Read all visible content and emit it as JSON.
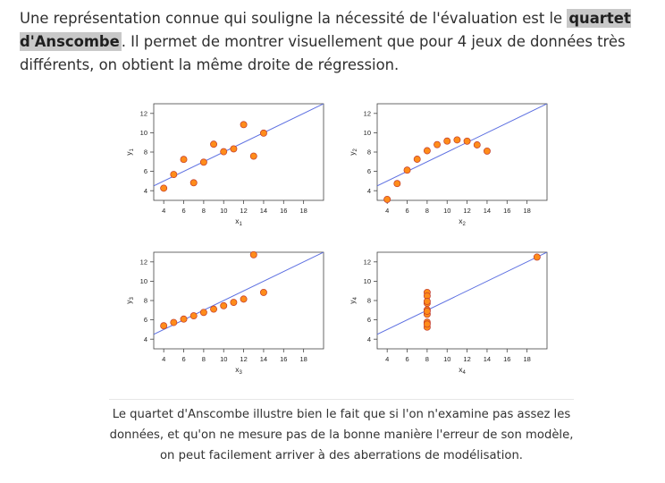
{
  "intro": {
    "text_before": "Une représentation connue qui souligne la nécessité de l'évaluation est le ",
    "highlight": "quartet d'Anscombe",
    "text_after": ". Il permet de montrer visuellement que pour 4 jeux de données très différents, on obtient la même droite de régression."
  },
  "caption": "Le quartet d'Anscombe illustre bien le fait que si l'on n'examine pas assez les données, et qu'on ne mesure pas de la bonne manière l'erreur de son modèle, on peut facilement arriver à des aberrations de modélisation.",
  "colors": {
    "point_fill": "#ff8c1a",
    "point_stroke": "#c0392b",
    "regression_line": "#5b6ee1",
    "axis": "#444444"
  },
  "chart_data": [
    {
      "type": "scatter",
      "xlabel": "x1",
      "ylabel": "y1",
      "xlim": [
        3,
        20
      ],
      "ylim": [
        3,
        13
      ],
      "xticks": [
        4,
        6,
        8,
        10,
        12,
        14,
        16,
        18
      ],
      "yticks": [
        4,
        6,
        8,
        10,
        12
      ],
      "regression": {
        "intercept": 3.0,
        "slope": 0.5
      },
      "x": [
        10,
        8,
        13,
        9,
        11,
        14,
        6,
        4,
        12,
        7,
        5
      ],
      "y": [
        8.04,
        6.95,
        7.58,
        8.81,
        8.33,
        9.96,
        7.24,
        4.26,
        10.84,
        4.82,
        5.68
      ]
    },
    {
      "type": "scatter",
      "xlabel": "x2",
      "ylabel": "y2",
      "xlim": [
        3,
        20
      ],
      "ylim": [
        3,
        13
      ],
      "xticks": [
        4,
        6,
        8,
        10,
        12,
        14,
        16,
        18
      ],
      "yticks": [
        4,
        6,
        8,
        10,
        12
      ],
      "regression": {
        "intercept": 3.0,
        "slope": 0.5
      },
      "x": [
        10,
        8,
        13,
        9,
        11,
        14,
        6,
        4,
        12,
        7,
        5
      ],
      "y": [
        9.14,
        8.14,
        8.74,
        8.77,
        9.26,
        8.1,
        6.13,
        3.1,
        9.13,
        7.26,
        4.74
      ]
    },
    {
      "type": "scatter",
      "xlabel": "x3",
      "ylabel": "y3",
      "xlim": [
        3,
        20
      ],
      "ylim": [
        3,
        13
      ],
      "xticks": [
        4,
        6,
        8,
        10,
        12,
        14,
        16,
        18
      ],
      "yticks": [
        4,
        6,
        8,
        10,
        12
      ],
      "regression": {
        "intercept": 3.0,
        "slope": 0.5
      },
      "x": [
        10,
        8,
        13,
        9,
        11,
        14,
        6,
        4,
        12,
        7,
        5
      ],
      "y": [
        7.46,
        6.77,
        12.74,
        7.11,
        7.81,
        8.84,
        6.08,
        5.39,
        8.15,
        6.42,
        5.73
      ]
    },
    {
      "type": "scatter",
      "xlabel": "x4",
      "ylabel": "y4",
      "xlim": [
        3,
        20
      ],
      "ylim": [
        3,
        13
      ],
      "xticks": [
        4,
        6,
        8,
        10,
        12,
        14,
        16,
        18
      ],
      "yticks": [
        4,
        6,
        8,
        10,
        12
      ],
      "regression": {
        "intercept": 3.0,
        "slope": 0.5
      },
      "x": [
        8,
        8,
        8,
        8,
        8,
        8,
        8,
        19,
        8,
        8,
        8
      ],
      "y": [
        6.58,
        5.76,
        7.71,
        8.84,
        8.47,
        7.04,
        5.25,
        12.5,
        5.56,
        7.91,
        6.89
      ]
    }
  ]
}
